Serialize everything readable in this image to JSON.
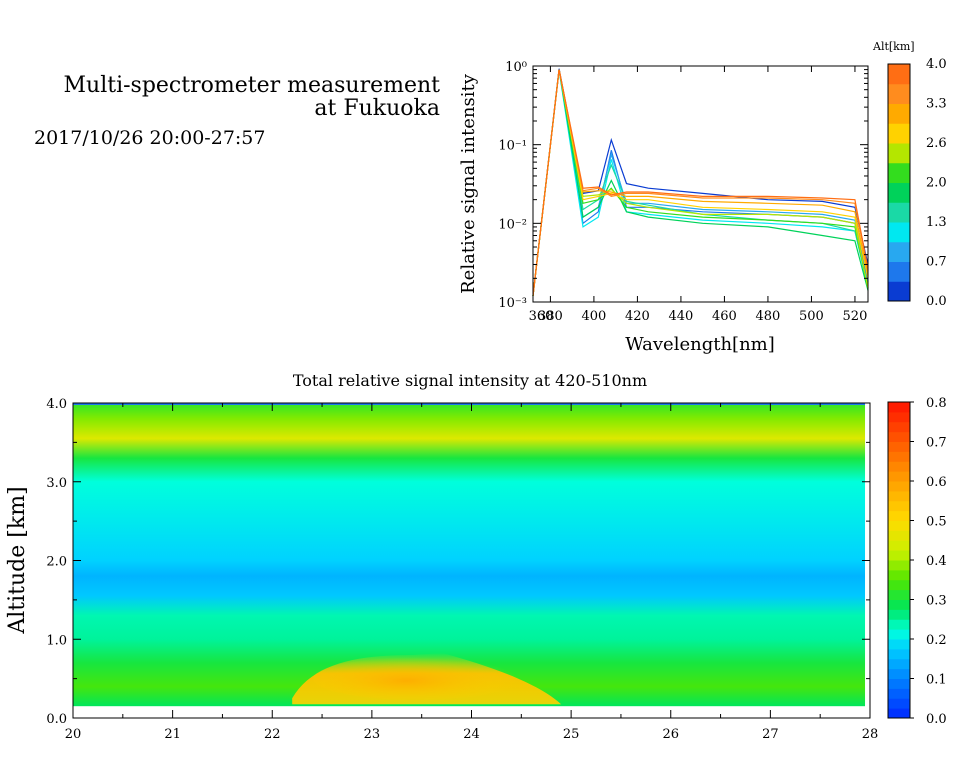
{
  "header": {
    "title_line1": "Multi-spectrometer measurement",
    "title_line2": "at Fukuoka",
    "datetime": "2017/10/26 20:00-27:57"
  },
  "chart_data": [
    {
      "type": "line",
      "xlabel": "Wavelength[nm]",
      "ylabel": "Relative signal intensity",
      "xlim": [
        372,
        526
      ],
      "ylim": [
        0.001,
        1
      ],
      "yscale": "log",
      "x_ticks": [
        "360",
        "380",
        "400",
        "420",
        "440",
        "460",
        "480",
        "500",
        "520"
      ],
      "x_tick_values": [
        370,
        380,
        400,
        420,
        440,
        460,
        480,
        500,
        520
      ],
      "y_ticks": [
        "10⁻³",
        "10⁻²",
        "10⁻¹",
        "10⁰"
      ],
      "y_tick_values": [
        0.001,
        0.01,
        0.1,
        1
      ],
      "x": [
        372,
        384,
        395,
        402,
        408,
        415,
        425,
        450,
        480,
        505,
        520,
        526
      ],
      "series": [
        {
          "color": "#0a3cd2",
          "values": [
            0.0012,
            0.92,
            0.024,
            0.026,
            0.115,
            0.032,
            0.028,
            0.024,
            0.02,
            0.019,
            0.016,
            0.003
          ]
        },
        {
          "color": "#1e78ec",
          "values": [
            0.0012,
            0.92,
            0.01,
            0.014,
            0.085,
            0.016,
            0.016,
            0.014,
            0.013,
            0.012,
            0.01,
            0.0018
          ]
        },
        {
          "color": "#28a8f0",
          "values": [
            0.0012,
            0.9,
            0.012,
            0.016,
            0.075,
            0.018,
            0.018,
            0.015,
            0.014,
            0.013,
            0.011,
            0.002
          ]
        },
        {
          "color": "#00e8f0",
          "values": [
            0.0012,
            0.88,
            0.009,
            0.012,
            0.065,
            0.014,
            0.013,
            0.011,
            0.01,
            0.009,
            0.008,
            0.0015
          ]
        },
        {
          "color": "#1ad9a6",
          "values": [
            0.0012,
            0.9,
            0.015,
            0.02,
            0.055,
            0.019,
            0.017,
            0.013,
            0.011,
            0.01,
            0.008,
            0.0016
          ]
        },
        {
          "color": "#00d25a",
          "values": [
            0.0012,
            0.9,
            0.012,
            0.016,
            0.035,
            0.014,
            0.012,
            0.01,
            0.009,
            0.007,
            0.006,
            0.0014
          ]
        },
        {
          "color": "#33dd1e",
          "values": [
            0.0012,
            0.9,
            0.018,
            0.02,
            0.028,
            0.016,
            0.014,
            0.012,
            0.011,
            0.01,
            0.009,
            0.0015
          ]
        },
        {
          "color": "#b4e600",
          "values": [
            0.0012,
            0.9,
            0.022,
            0.023,
            0.027,
            0.018,
            0.016,
            0.013,
            0.013,
            0.012,
            0.01,
            0.0015
          ]
        },
        {
          "color": "#ffd200",
          "values": [
            0.0012,
            0.9,
            0.02,
            0.022,
            0.024,
            0.02,
            0.02,
            0.016,
            0.015,
            0.014,
            0.012,
            0.002
          ]
        },
        {
          "color": "#ffaa00",
          "values": [
            0.0012,
            0.9,
            0.025,
            0.026,
            0.025,
            0.022,
            0.022,
            0.019,
            0.018,
            0.017,
            0.014,
            0.0022
          ]
        },
        {
          "color": "#ff8c1e",
          "values": [
            0.0012,
            0.9,
            0.026,
            0.028,
            0.022,
            0.024,
            0.024,
            0.021,
            0.021,
            0.02,
            0.018,
            0.0025
          ]
        },
        {
          "color": "#ff6e14",
          "values": [
            0.0012,
            0.9,
            0.028,
            0.029,
            0.023,
            0.025,
            0.025,
            0.022,
            0.022,
            0.021,
            0.02,
            0.0026
          ]
        }
      ],
      "colorbar": {
        "title": "Alt[km]",
        "labels": [
          "4.0",
          "3.3",
          "2.6",
          "2.0",
          "1.3",
          "0.7",
          "0.0"
        ],
        "colors": [
          "#0a3cd2",
          "#1e78ec",
          "#28a8f0",
          "#00e8f0",
          "#1ad9a6",
          "#00d25a",
          "#33dd1e",
          "#b4e600",
          "#ffd200",
          "#ffaa00",
          "#ff8c1e",
          "#ff6e14"
        ]
      }
    },
    {
      "type": "heatmap",
      "title": "Total relative signal intensity at 420-510nm",
      "xlabel": "",
      "ylabel": "Altitude [km]",
      "xlim": [
        20,
        28
      ],
      "ylim": [
        0,
        4
      ],
      "data_x_range": [
        20,
        27.95
      ],
      "data_y_range": [
        0.15,
        4.0
      ],
      "x_ticks": [
        "20",
        "21",
        "22",
        "23",
        "24",
        "25",
        "26",
        "27",
        "28"
      ],
      "x_tick_values": [
        20,
        21,
        22,
        23,
        24,
        25,
        26,
        27,
        28
      ],
      "y_ticks": [
        "0.0",
        "1.0",
        "2.0",
        "3.0",
        "4.0"
      ],
      "y_tick_values": [
        0,
        1,
        2,
        3,
        4
      ],
      "profile_by_altitude": [
        {
          "alt": 0.15,
          "value": 0.28
        },
        {
          "alt": 0.4,
          "value": 0.34
        },
        {
          "alt": 0.7,
          "value": 0.3
        },
        {
          "alt": 1.0,
          "value": 0.25
        },
        {
          "alt": 1.3,
          "value": 0.24
        },
        {
          "alt": 1.55,
          "value": 0.17
        },
        {
          "alt": 1.8,
          "value": 0.15
        },
        {
          "alt": 2.0,
          "value": 0.18
        },
        {
          "alt": 2.5,
          "value": 0.2
        },
        {
          "alt": 3.0,
          "value": 0.22
        },
        {
          "alt": 3.3,
          "value": 0.3
        },
        {
          "alt": 3.55,
          "value": 0.45
        },
        {
          "alt": 3.8,
          "value": 0.38
        },
        {
          "alt": 4.0,
          "value": 0.32
        }
      ],
      "enhancement": {
        "x_range": [
          22.2,
          24.9
        ],
        "alt_range": [
          0.15,
          0.8
        ],
        "peak": 0.52
      },
      "colorbar": {
        "labels": [
          "0.8",
          "0.7",
          "0.6",
          "0.5",
          "0.4",
          "0.3",
          "0.2",
          "0.1",
          "0.0"
        ],
        "range": [
          0,
          0.8
        ]
      }
    }
  ]
}
